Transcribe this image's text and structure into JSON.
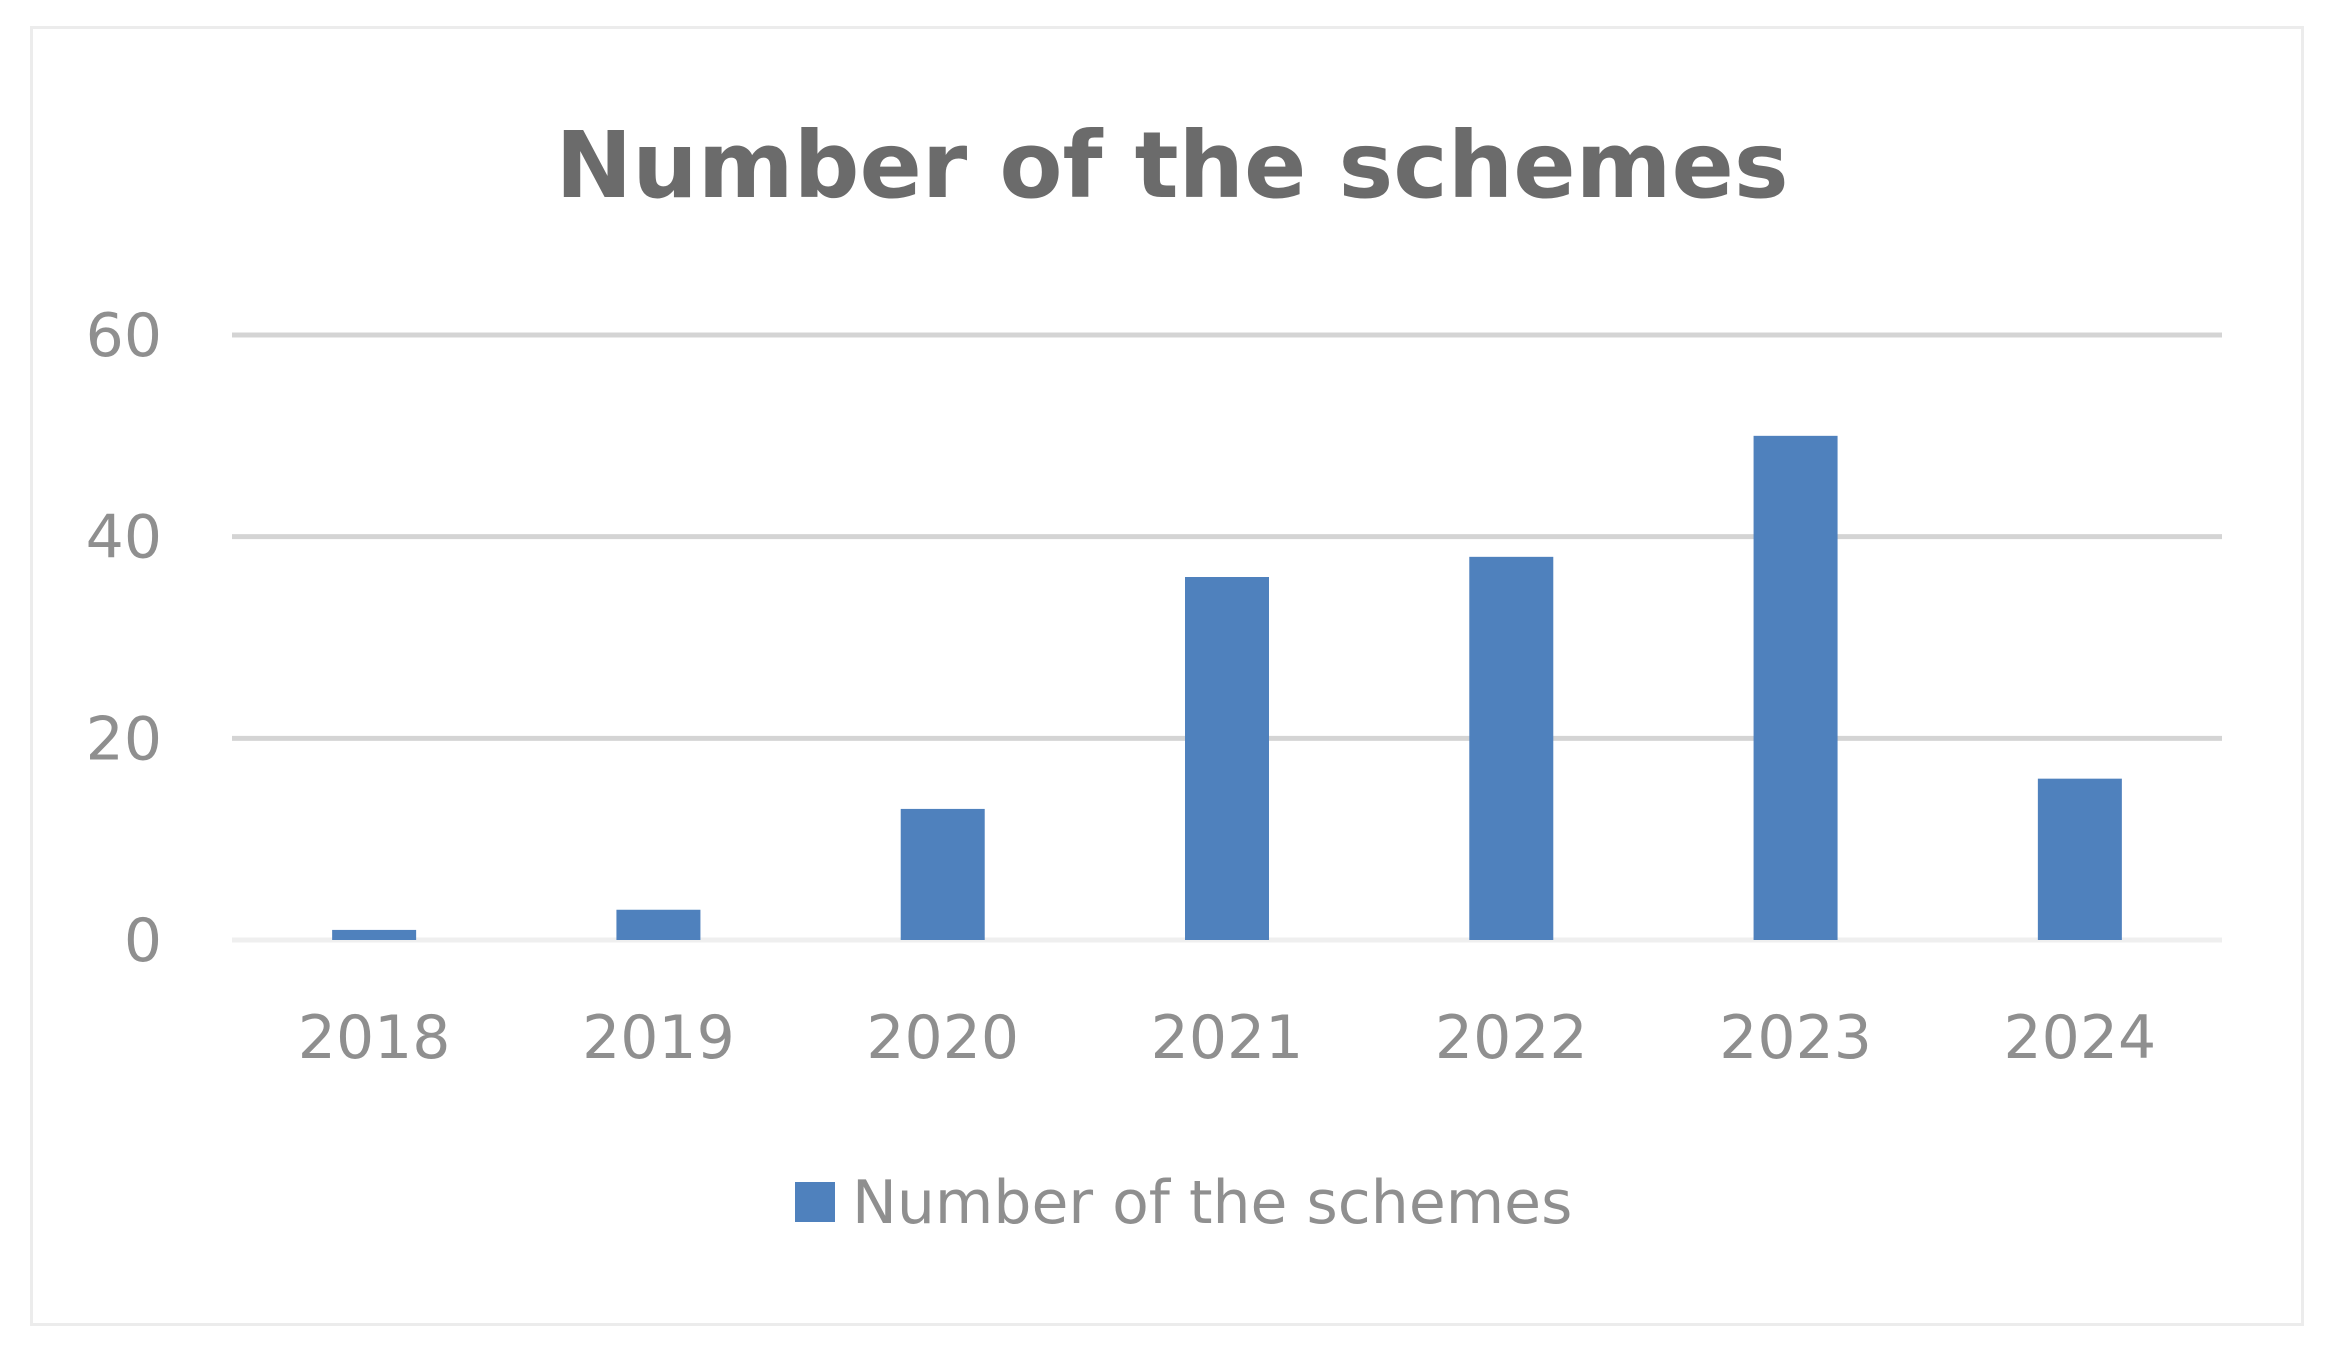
{
  "chart_data": {
    "type": "bar",
    "title": "Number of the schemes",
    "categories": [
      "2018",
      "2019",
      "2020",
      "2021",
      "2022",
      "2023",
      "2024"
    ],
    "series": [
      {
        "name": "Number of the schemes",
        "values": [
          1,
          3,
          13,
          36,
          38,
          50,
          16
        ],
        "color": "#4f81bd"
      }
    ],
    "ylim": [
      0,
      60
    ],
    "yticks": [
      "0",
      "20",
      "40",
      "60"
    ],
    "grid": true,
    "legend": "bottom",
    "xlabel": "",
    "ylabel": ""
  }
}
